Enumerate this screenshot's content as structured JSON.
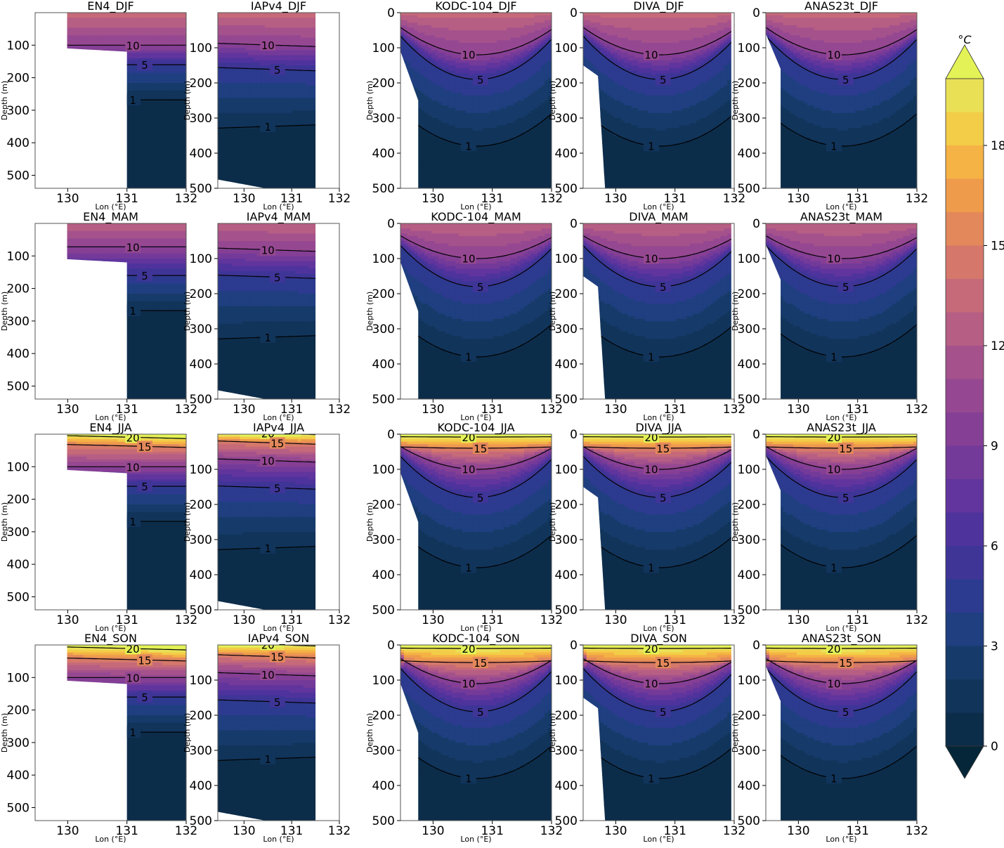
{
  "figure": {
    "colorbar": {
      "unit_label": "°C",
      "ticks": [
        0,
        3,
        6,
        9,
        12,
        15,
        18
      ],
      "vmin": 0,
      "vmax": 20,
      "levels": 20,
      "extend": "both",
      "colormap": [
        "#052639",
        "#0c2d4a",
        "#11345a",
        "#163b6a",
        "#1f3f80",
        "#2c3a8f",
        "#3e3597",
        "#4f339d",
        "#61359d",
        "#743a99",
        "#853f95",
        "#954891",
        "#a5528c",
        "#b65e84",
        "#c66a79",
        "#d5786b",
        "#e3885b",
        "#ee9b4b",
        "#f5b245",
        "#f3cc48",
        "#eae056",
        "#e3f256"
      ]
    },
    "axis_labels": {
      "x": "Lon (°E)",
      "y": "Depth (m)"
    },
    "x_ticks": [
      "130",
      "131",
      "132"
    ],
    "depth_ticks_a": [
      "100",
      "200",
      "300",
      "400",
      "500"
    ],
    "depth_ticks_b": [
      "0",
      "100",
      "200",
      "300",
      "400",
      "500"
    ]
  },
  "chart_data": {
    "type": "heatmap",
    "description_kind": "contour sections of temperature vs longitude and depth",
    "x_range": [
      129.45,
      132.0
    ],
    "seasons": [
      "DJF",
      "MAM",
      "JJA",
      "SON"
    ],
    "products": [
      "EN4",
      "IAPv4",
      "KODC-104",
      "DIVA",
      "ANAS23t"
    ],
    "panels": [
      {
        "title": "EN4_DJF",
        "contours": [
          10,
          5,
          1
        ]
      },
      {
        "title": "IAPv4_DJF",
        "contours": [
          10,
          5,
          1
        ]
      },
      {
        "title": "KODC-104_DJF",
        "contours": [
          10,
          5,
          1
        ]
      },
      {
        "title": "DIVA_DJF",
        "contours": [
          10,
          5,
          1
        ]
      },
      {
        "title": "ANAS23t_DJF",
        "contours": [
          10,
          5,
          1
        ]
      },
      {
        "title": "EN4_MAM",
        "contours": [
          10,
          5,
          1
        ]
      },
      {
        "title": "IAPv4_MAM",
        "contours": [
          10,
          5,
          1
        ]
      },
      {
        "title": "KODC-104_MAM",
        "contours": [
          10,
          5,
          1
        ]
      },
      {
        "title": "DIVA_MAM",
        "contours": [
          10,
          5,
          1
        ]
      },
      {
        "title": "ANAS23t_MAM",
        "contours": [
          10,
          5,
          1
        ]
      },
      {
        "title": "EN4_JJA",
        "contours": [
          20,
          15,
          10,
          5,
          1
        ]
      },
      {
        "title": "IAPv4_JJA",
        "contours": [
          20,
          15,
          10,
          5,
          1
        ]
      },
      {
        "title": "KODC-104_JJA",
        "contours": [
          20,
          15,
          10,
          5,
          1
        ]
      },
      {
        "title": "DIVA_JJA",
        "contours": [
          20,
          15,
          10,
          5,
          1
        ]
      },
      {
        "title": "ANAS23t_JJA",
        "contours": [
          20,
          15,
          10,
          5,
          1
        ]
      },
      {
        "title": "EN4_SON",
        "contours": [
          20,
          15,
          10,
          5,
          1
        ]
      },
      {
        "title": "IAPv4_SON",
        "contours": [
          20,
          15,
          10,
          5,
          1
        ]
      },
      {
        "title": "KODC-104_SON",
        "contours": [
          20,
          15,
          10,
          5,
          1
        ]
      },
      {
        "title": "DIVA_SON",
        "contours": [
          20,
          15,
          10,
          5,
          1
        ]
      },
      {
        "title": "ANAS23t_SON",
        "contours": [
          20,
          15,
          10,
          5,
          1
        ]
      }
    ]
  }
}
